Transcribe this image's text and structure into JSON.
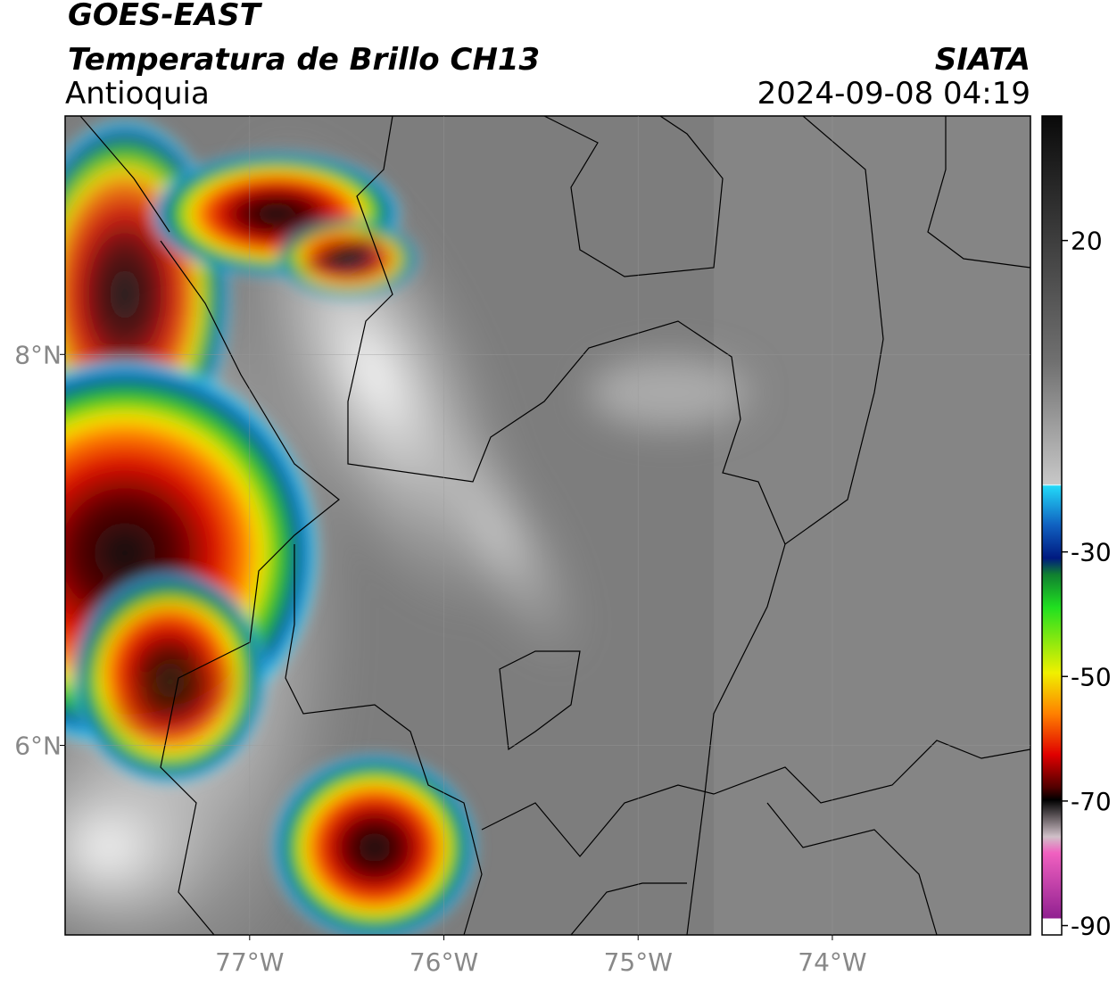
{
  "map": {
    "title": "GOES-EAST",
    "subtitle": "Temperatura de Brillo CH13",
    "region": "Antioquia",
    "source": "SIATA",
    "timestamp": "2024-09-08 04:19",
    "xlim": [
      -77.95,
      -72.98
    ],
    "ylim": [
      5.03,
      9.22
    ],
    "xticks": [
      {
        "value": -77,
        "label": "77°W"
      },
      {
        "value": -76,
        "label": "76°W"
      },
      {
        "value": -75,
        "label": "75°W"
      },
      {
        "value": -74,
        "label": "74°W"
      }
    ],
    "yticks": [
      {
        "value": 6,
        "label": "6°N"
      },
      {
        "value": 8,
        "label": "8°N"
      }
    ],
    "grid": true,
    "colorbar": {
      "lim": [
        -91.5,
        40
      ],
      "ticks": [
        20,
        -30,
        -50,
        -70,
        -90
      ]
    }
  }
}
